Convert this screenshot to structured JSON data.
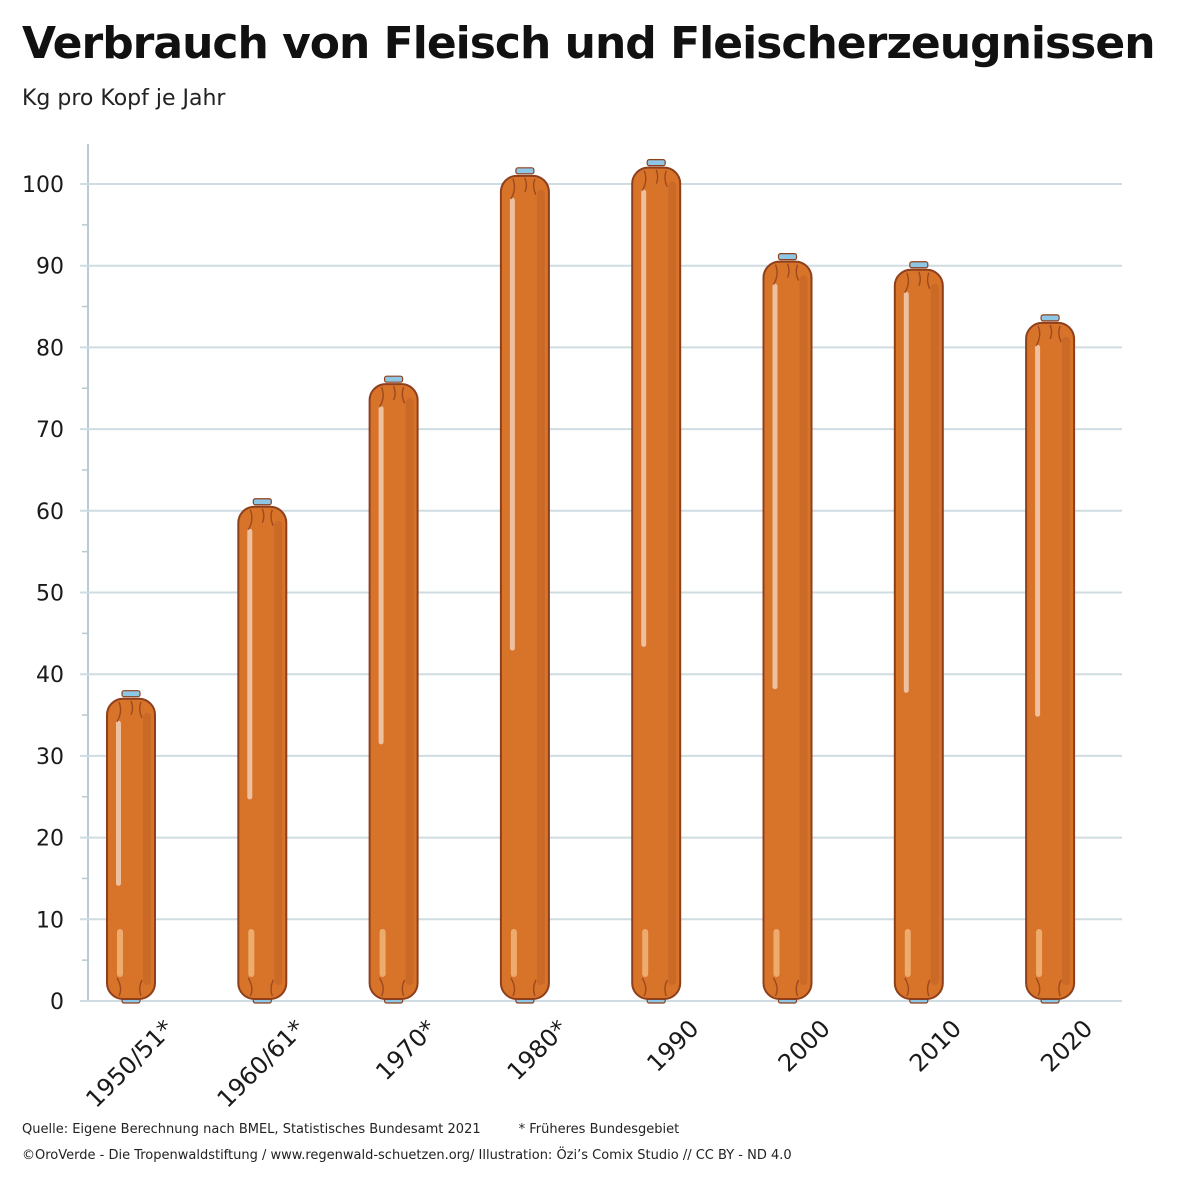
{
  "title": "Verbrauch von Fleisch und Fleischerzeugnissen",
  "subtitle": "Kg pro Kopf je Jahr",
  "footer": {
    "source": "Quelle: Eigene Berechnung nach BMEL, Statistisches Bundesamt 2021",
    "footnote": "* Früheres Bundesgebiet",
    "credit": "©OroVerde - Die Tropenwaldstiftung / www.regenwald-schuetzen.org/ Illustration: Özi’s Comix Studio // CC BY - ND 4.0"
  },
  "colors": {
    "sausage": "#d8732a",
    "sausage_dark": "#8e3f1c",
    "sausage_light": "#f6c48a",
    "string": "#8ec7e6",
    "grid": "#cfdce2",
    "axis": "#b9cad2"
  },
  "chart_data": {
    "type": "bar",
    "categories": [
      "1950/51*",
      "1960/61*",
      "1970*",
      "1980*",
      "1990",
      "2000",
      "2010",
      "2020"
    ],
    "values": [
      37,
      60.5,
      75.5,
      101,
      102,
      90.5,
      89.5,
      83
    ],
    "ylim": [
      0,
      100
    ],
    "yticks": [
      0,
      10,
      20,
      30,
      40,
      50,
      60,
      70,
      80,
      90,
      100
    ],
    "grid": true,
    "xlabel": "",
    "ylabel": ""
  }
}
